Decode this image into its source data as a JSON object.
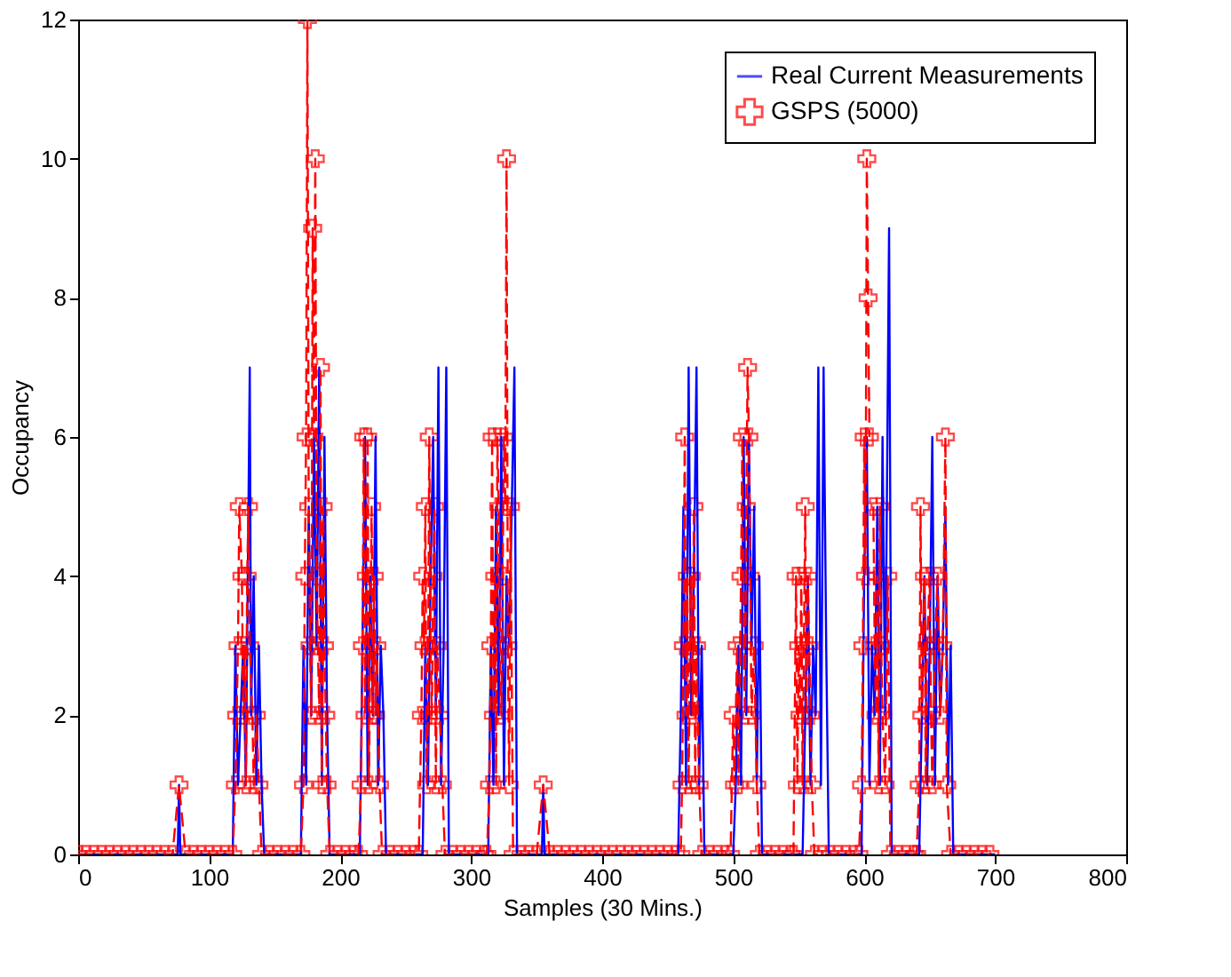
{
  "chart_data": {
    "type": "line",
    "xlabel": "Samples (30 Mins.)",
    "ylabel": "Occupancy",
    "xlim": [
      0,
      800
    ],
    "xticks": [
      0,
      100,
      200,
      300,
      400,
      500,
      600,
      700,
      800
    ],
    "ylim": [
      0,
      12
    ],
    "yticks": [
      0,
      2,
      4,
      6,
      8,
      10,
      12
    ],
    "grid": false,
    "legend": "top right",
    "series": [
      {
        "name": "Real Current Measurements",
        "color": "#0000ff",
        "marker": "none",
        "line_style": "solid",
        "x": [
          0,
          76,
          77,
          78,
          118,
          120,
          122,
          124,
          126,
          128,
          130,
          131,
          132,
          134,
          136,
          138,
          140,
          142,
          170,
          172,
          174,
          176,
          178,
          180,
          182,
          184,
          186,
          188,
          190,
          192,
          215,
          217,
          219,
          221,
          223,
          225,
          227,
          229,
          231,
          233,
          235,
          263,
          265,
          267,
          269,
          271,
          273,
          275,
          277,
          279,
          281,
          283,
          313,
          315,
          317,
          319,
          321,
          323,
          325,
          327,
          329,
          331,
          333,
          335,
          354,
          355,
          356,
          458,
          460,
          462,
          464,
          466,
          468,
          470,
          472,
          474,
          476,
          478,
          500,
          502,
          504,
          506,
          508,
          510,
          512,
          514,
          516,
          518,
          520,
          522,
          553,
          555,
          557,
          559,
          561,
          563,
          565,
          567,
          569,
          571,
          573,
          598,
          600,
          602,
          604,
          606,
          608,
          610,
          612,
          614,
          616,
          619,
          621,
          642,
          644,
          646,
          648,
          650,
          652,
          654,
          656,
          658,
          660,
          662,
          664,
          666,
          668,
          700
        ],
        "values": [
          0,
          0,
          1,
          0,
          0,
          3,
          1,
          2,
          3,
          1,
          5,
          7,
          2,
          4,
          1,
          3,
          1,
          0,
          0,
          3,
          1,
          5,
          2,
          6,
          3,
          7,
          1,
          6,
          2,
          0,
          0,
          3,
          6,
          1,
          4,
          2,
          6,
          1,
          3,
          2,
          0,
          0,
          3,
          1,
          4,
          6,
          2,
          7,
          1,
          3,
          7,
          0,
          0,
          3,
          1,
          5,
          2,
          6,
          1,
          4,
          3,
          5,
          7,
          0,
          0,
          1,
          0,
          0,
          2,
          5,
          1,
          7,
          2,
          4,
          7,
          1,
          3,
          0,
          0,
          1,
          3,
          1,
          6,
          2,
          6,
          3,
          5,
          1,
          4,
          0,
          0,
          2,
          4,
          1,
          3,
          2,
          7,
          1,
          7,
          3,
          0,
          0,
          4,
          6,
          1,
          3,
          2,
          5,
          1,
          6,
          2,
          9,
          0,
          0,
          2,
          4,
          1,
          3,
          6,
          1,
          4,
          2,
          3,
          5,
          1,
          3,
          0,
          0
        ]
      },
      {
        "name": "GSPS (5000)",
        "color": "#ff0000",
        "marker": "cross",
        "line_style": "dashed",
        "x": [
          0,
          6,
          12,
          18,
          24,
          30,
          36,
          42,
          48,
          54,
          60,
          66,
          72,
          77,
          82,
          88,
          94,
          100,
          106,
          112,
          118,
          120,
          121,
          122,
          123,
          125,
          126,
          127,
          128,
          129,
          130,
          131,
          133,
          134,
          136,
          138,
          140,
          146,
          152,
          158,
          164,
          170,
          172,
          173,
          174,
          175,
          176,
          177,
          178,
          179,
          180,
          181,
          182,
          183,
          184,
          185,
          186,
          187,
          188,
          189,
          190,
          192,
          198,
          204,
          210,
          214,
          216,
          217,
          218,
          219,
          220,
          221,
          222,
          223,
          224,
          225,
          226,
          227,
          228,
          230,
          232,
          238,
          244,
          250,
          256,
          260,
          262,
          263,
          264,
          265,
          266,
          267,
          268,
          269,
          270,
          271,
          272,
          273,
          274,
          276,
          278,
          280,
          286,
          292,
          298,
          304,
          310,
          312,
          314,
          315,
          316,
          317,
          318,
          319,
          320,
          321,
          322,
          323,
          324,
          325,
          326,
          327,
          328,
          329,
          330,
          332,
          338,
          344,
          350,
          355,
          360,
          366,
          372,
          378,
          384,
          390,
          396,
          402,
          408,
          414,
          420,
          426,
          432,
          438,
          444,
          450,
          456,
          460,
          461,
          462,
          463,
          464,
          465,
          466,
          467,
          468,
          469,
          470,
          471,
          472,
          474,
          476,
          482,
          488,
          494,
          498,
          500,
          501,
          503,
          504,
          506,
          507,
          508,
          509,
          510,
          511,
          512,
          513,
          514,
          516,
          518,
          520,
          526,
          532,
          538,
          544,
          546,
          548,
          549,
          550,
          551,
          552,
          553,
          554,
          555,
          556,
          557,
          558,
          559,
          560,
          562,
          568,
          574,
          580,
          586,
          592,
          596,
          598,
          599,
          600,
          601,
          602,
          603,
          604,
          606,
          607,
          608,
          609,
          610,
          611,
          612,
          613,
          614,
          616,
          618,
          620,
          626,
          632,
          638,
          640,
          642,
          643,
          644,
          646,
          647,
          648,
          650,
          651,
          652,
          654,
          656,
          658,
          660,
          662,
          663,
          666,
          672,
          678,
          684,
          690,
          696
        ],
        "values": [
          0,
          0,
          0,
          0,
          0,
          0,
          0,
          0,
          0,
          0,
          0,
          0,
          0,
          1,
          0,
          0,
          0,
          0,
          0,
          0,
          0,
          1,
          2,
          3,
          5,
          4,
          2,
          3,
          1,
          4,
          5,
          3,
          2,
          1,
          2,
          1,
          0,
          0,
          0,
          0,
          0,
          0,
          1,
          4,
          6,
          12,
          5,
          3,
          2,
          9,
          6,
          10,
          4,
          3,
          2,
          7,
          1,
          5,
          3,
          2,
          1,
          0,
          0,
          0,
          0,
          0,
          1,
          3,
          6,
          2,
          4,
          6,
          1,
          3,
          5,
          2,
          4,
          2,
          3,
          1,
          0,
          0,
          0,
          0,
          0,
          0,
          2,
          4,
          3,
          5,
          1,
          2,
          6,
          3,
          2,
          4,
          5,
          1,
          3,
          2,
          1,
          0,
          0,
          0,
          0,
          0,
          0,
          0,
          1,
          3,
          6,
          2,
          4,
          1,
          6,
          5,
          3,
          2,
          4,
          6,
          5,
          10,
          3,
          1,
          5,
          0,
          0,
          0,
          0,
          1,
          0,
          0,
          0,
          0,
          0,
          0,
          0,
          0,
          0,
          0,
          0,
          0,
          0,
          0,
          0,
          0,
          0,
          0,
          1,
          3,
          6,
          2,
          4,
          1,
          3,
          4,
          2,
          5,
          1,
          3,
          1,
          0,
          0,
          0,
          0,
          0,
          2,
          1,
          3,
          1,
          4,
          6,
          3,
          2,
          5,
          7,
          6,
          4,
          2,
          3,
          1,
          0,
          0,
          0,
          0,
          0,
          0,
          4,
          1,
          3,
          2,
          4,
          1,
          3,
          5,
          2,
          4,
          3,
          2,
          1,
          0,
          0,
          0,
          0,
          0,
          0,
          0,
          1,
          3,
          6,
          4,
          10,
          8,
          6,
          null,
          5,
          3,
          2,
          4,
          1,
          5,
          3,
          2,
          1,
          4,
          0,
          0,
          0,
          0,
          0,
          1,
          5,
          2,
          4,
          1,
          3,
          4,
          2,
          1,
          3,
          4,
          2,
          3,
          6,
          1,
          0,
          0,
          0,
          0,
          0,
          0
        ]
      }
    ]
  }
}
